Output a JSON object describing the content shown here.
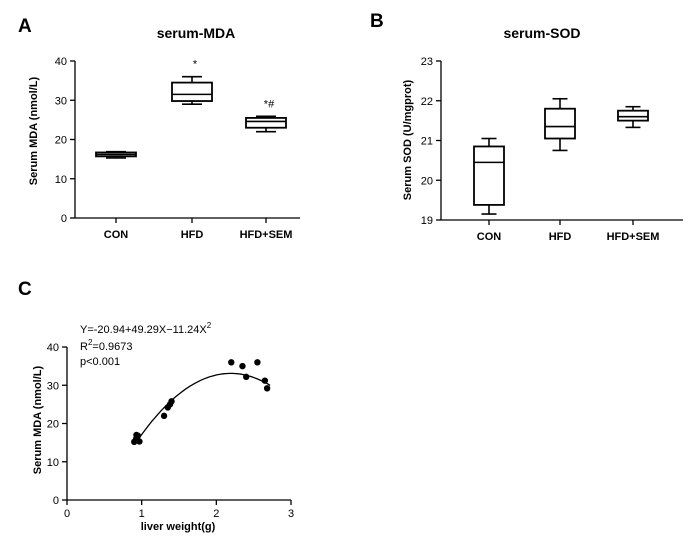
{
  "chart_data": [
    {
      "panel": "A",
      "type": "box",
      "title": "serum-MDA",
      "ylabel": "Serum MDA (nmol/L)",
      "xlabel": "",
      "ylim": [
        0,
        40
      ],
      "yticks": [
        0,
        10,
        20,
        30,
        40
      ],
      "categories": [
        "CON",
        "HFD",
        "HFD+SEM"
      ],
      "boxes": [
        {
          "min": 15.3,
          "q1": 15.7,
          "median": 16.2,
          "q3": 16.7,
          "max": 16.9,
          "annotation": ""
        },
        {
          "min": 29.0,
          "q1": 29.8,
          "median": 31.5,
          "q3": 34.5,
          "max": 36.0,
          "annotation": "*"
        },
        {
          "min": 22.0,
          "q1": 23.0,
          "median": 24.6,
          "q3": 25.5,
          "max": 25.9,
          "annotation": "*#"
        }
      ]
    },
    {
      "panel": "B",
      "type": "box",
      "title": "serum-SOD",
      "ylabel": "Serum SOD (U/mgprot)",
      "xlabel": "",
      "ylim": [
        19,
        23
      ],
      "yticks": [
        19,
        20,
        21,
        22,
        23
      ],
      "categories": [
        "CON",
        "HFD",
        "HFD+SEM"
      ],
      "boxes": [
        {
          "min": 19.15,
          "q1": 19.38,
          "median": 20.45,
          "q3": 20.85,
          "max": 21.05,
          "annotation": ""
        },
        {
          "min": 20.75,
          "q1": 21.05,
          "median": 21.35,
          "q3": 21.8,
          "max": 22.05,
          "annotation": ""
        },
        {
          "min": 21.33,
          "q1": 21.5,
          "median": 21.6,
          "q3": 21.75,
          "max": 21.85,
          "annotation": ""
        }
      ]
    },
    {
      "panel": "C",
      "type": "scatter",
      "title": "",
      "ylabel": "Serum MDA (nmol/L)",
      "xlabel": "liver weight(g)",
      "xlim": [
        0,
        3
      ],
      "ylim": [
        0,
        40
      ],
      "xticks": [
        0,
        1,
        2,
        3
      ],
      "yticks": [
        0,
        10,
        20,
        30,
        40
      ],
      "annotations": {
        "equation": "Y=-20.94+49.29X−11.24X",
        "equation_exponent": "2",
        "r2_base": "R",
        "r2_exponent": "2",
        "r2_value": "=0.9673",
        "p": "p<0.001"
      },
      "fit": {
        "a": -20.94,
        "b": 49.29,
        "c": -11.24,
        "x_range": [
          0.93,
          2.72
        ]
      },
      "points": [
        {
          "x": 0.9,
          "y": 15.2
        },
        {
          "x": 0.92,
          "y": 15.6
        },
        {
          "x": 0.93,
          "y": 16.2
        },
        {
          "x": 0.95,
          "y": 16.8
        },
        {
          "x": 0.97,
          "y": 15.3
        },
        {
          "x": 0.93,
          "y": 17.0
        },
        {
          "x": 1.3,
          "y": 22.0
        },
        {
          "x": 1.35,
          "y": 24.2
        },
        {
          "x": 1.38,
          "y": 25.0
        },
        {
          "x": 1.4,
          "y": 25.8
        },
        {
          "x": 2.2,
          "y": 36.0
        },
        {
          "x": 2.35,
          "y": 35.0
        },
        {
          "x": 2.4,
          "y": 32.2
        },
        {
          "x": 2.55,
          "y": 36.0
        },
        {
          "x": 2.65,
          "y": 31.2
        },
        {
          "x": 2.68,
          "y": 29.2
        }
      ]
    }
  ]
}
